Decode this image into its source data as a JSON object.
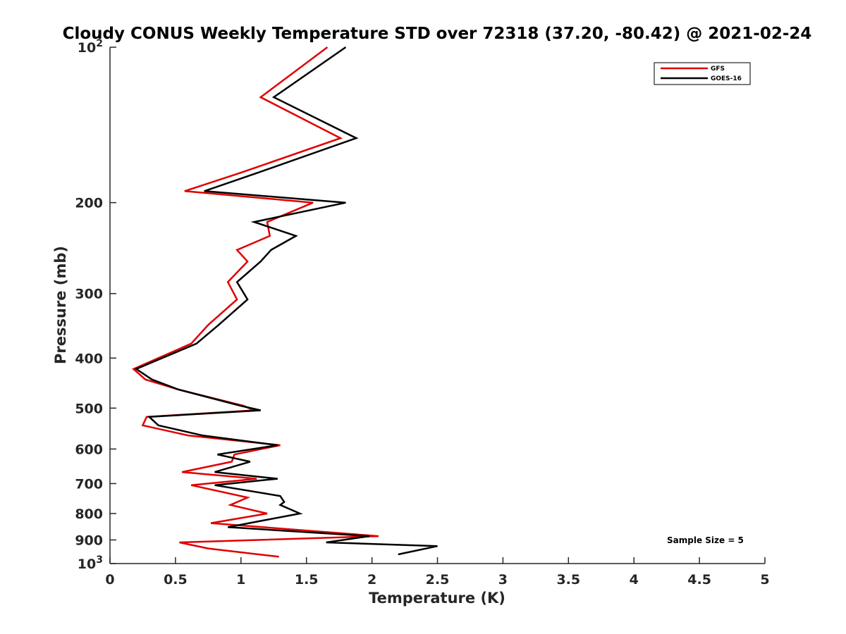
{
  "chart_data": {
    "type": "line",
    "title": "Cloudy CONUS Weekly Temperature STD over 72318 (37.20, -80.42) @ 2021-02-24",
    "xlabel": "Temperature (K)",
    "ylabel": "Pressure (mb)",
    "xlim": [
      0,
      5
    ],
    "ylim": [
      100,
      1000
    ],
    "y_scale": "log",
    "y_reversed": true,
    "x_ticks": [
      "0",
      "0.5",
      "1",
      "1.5",
      "2",
      "2.5",
      "3",
      "3.5",
      "4",
      "4.5",
      "5"
    ],
    "y_ticks": [
      {
        "value": 100,
        "base": "10",
        "exp": "2"
      },
      {
        "value": 200,
        "label": "200"
      },
      {
        "value": 300,
        "label": "300"
      },
      {
        "value": 400,
        "label": "400"
      },
      {
        "value": 500,
        "label": "500"
      },
      {
        "value": 600,
        "label": "600"
      },
      {
        "value": 700,
        "label": "700"
      },
      {
        "value": 800,
        "label": "800"
      },
      {
        "value": 900,
        "label": "900"
      },
      {
        "value": 1000,
        "base": "10",
        "exp": "3"
      }
    ],
    "legend_position": "top-right",
    "annotation": "Sample Size = 5",
    "series": [
      {
        "name": "GFS",
        "color": "#e00000",
        "points": [
          [
            1.66,
            100
          ],
          [
            1.15,
            125
          ],
          [
            1.76,
            150
          ],
          [
            1.0,
            175
          ],
          [
            0.57,
            190
          ],
          [
            1.55,
            200
          ],
          [
            1.2,
            218
          ],
          [
            1.22,
            232
          ],
          [
            0.97,
            247
          ],
          [
            1.05,
            260
          ],
          [
            0.9,
            285
          ],
          [
            0.97,
            308
          ],
          [
            0.75,
            345
          ],
          [
            0.62,
            375
          ],
          [
            0.18,
            420
          ],
          [
            0.27,
            440
          ],
          [
            0.52,
            460
          ],
          [
            1.02,
            495
          ],
          [
            1.1,
            505
          ],
          [
            0.28,
            520
          ],
          [
            0.25,
            540
          ],
          [
            0.6,
            565
          ],
          [
            1.3,
            590
          ],
          [
            0.95,
            615
          ],
          [
            0.93,
            635
          ],
          [
            0.55,
            665
          ],
          [
            1.12,
            685
          ],
          [
            0.62,
            705
          ],
          [
            1.05,
            745
          ],
          [
            0.92,
            770
          ],
          [
            1.2,
            800
          ],
          [
            0.77,
            835
          ],
          [
            2.05,
            885
          ],
          [
            0.53,
            910
          ],
          [
            0.75,
            935
          ],
          [
            1.29,
            970
          ]
        ]
      },
      {
        "name": "GOES-16",
        "color": "#000000",
        "points": [
          [
            1.8,
            100
          ],
          [
            1.25,
            125
          ],
          [
            1.88,
            150
          ],
          [
            1.13,
            175
          ],
          [
            0.72,
            190
          ],
          [
            1.8,
            200
          ],
          [
            1.1,
            218
          ],
          [
            1.42,
            232
          ],
          [
            1.23,
            247
          ],
          [
            1.15,
            260
          ],
          [
            0.97,
            285
          ],
          [
            1.05,
            308
          ],
          [
            0.83,
            345
          ],
          [
            0.66,
            375
          ],
          [
            0.2,
            420
          ],
          [
            0.32,
            440
          ],
          [
            0.52,
            460
          ],
          [
            1.0,
            495
          ],
          [
            1.15,
            505
          ],
          [
            0.3,
            520
          ],
          [
            0.37,
            540
          ],
          [
            0.71,
            565
          ],
          [
            1.28,
            590
          ],
          [
            0.82,
            615
          ],
          [
            1.07,
            635
          ],
          [
            0.8,
            665
          ],
          [
            1.28,
            685
          ],
          [
            0.8,
            705
          ],
          [
            1.3,
            740
          ],
          [
            1.33,
            760
          ],
          [
            1.3,
            770
          ],
          [
            1.45,
            800
          ],
          [
            0.9,
            850
          ],
          [
            1.98,
            885
          ],
          [
            1.65,
            910
          ],
          [
            2.5,
            925
          ],
          [
            2.2,
            960
          ]
        ]
      }
    ]
  }
}
